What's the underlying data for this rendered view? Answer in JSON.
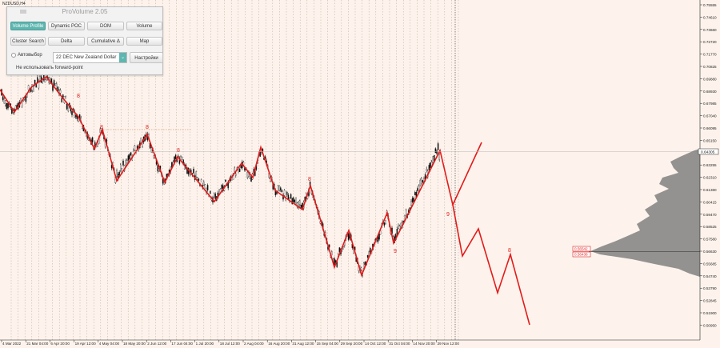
{
  "chart": {
    "symbol": "NZDUSD,H4",
    "current_price": "0.64305",
    "price_labels": [
      "0.75555",
      "0.74610",
      "0.73660",
      "0.72720",
      "0.71770",
      "0.70825",
      "0.69880",
      "0.68930",
      "0.67985",
      "0.67040",
      "0.66095",
      "0.65150",
      "0.64200",
      "0.63255",
      "0.62310",
      "0.61360",
      "0.60415",
      "0.59470",
      "0.58525",
      "0.57580",
      "0.56630",
      "0.55685",
      "0.54740",
      "0.53790",
      "0.52845",
      "0.51900",
      "0.50950"
    ],
    "level_boxes": [
      "0.56542",
      "0.56438"
    ],
    "time_labels": [
      "4 Mar 2022",
      "21 Mar 04:00",
      "6 Apr 20:00",
      "19 Apr 12:00",
      "4 May 04:00",
      "18 May 20:00",
      "2 Jun 12:00",
      "17 Jun 04:00",
      "1 Jul 20:00",
      "18 Jul 12:00",
      "2 Aug 04:00",
      "16 Aug 20:00",
      "31 Aug 12:00",
      "15 Sep 04:00",
      "29 Sep 20:00",
      "14 Oct 12:00",
      "31 Oct 04:00",
      "14 Nov 20:00",
      "29 Nov 12:00"
    ],
    "wave_labels": [
      "8",
      "8",
      "8",
      "8",
      "8",
      "9",
      "9",
      "8"
    ],
    "colors": {
      "wave": "#e21b1b",
      "candles": "#111111",
      "profile": "#808080",
      "grid": "#b8a898",
      "background": "#fdf3ec"
    }
  },
  "panel": {
    "title": "ProVolume 2.05",
    "buttons": [
      "Volume Profile",
      "Dynamic POC",
      "DOM",
      "Volume",
      "Cluster Search",
      "Delta",
      "Cumulative Δ",
      "Map"
    ],
    "auto_select_label": "Автовыбор",
    "instrument_value": "22 DEC New Zealand Dollar",
    "settings_button": "Настройки",
    "forward_point_label": "Не использовать forward-point"
  }
}
